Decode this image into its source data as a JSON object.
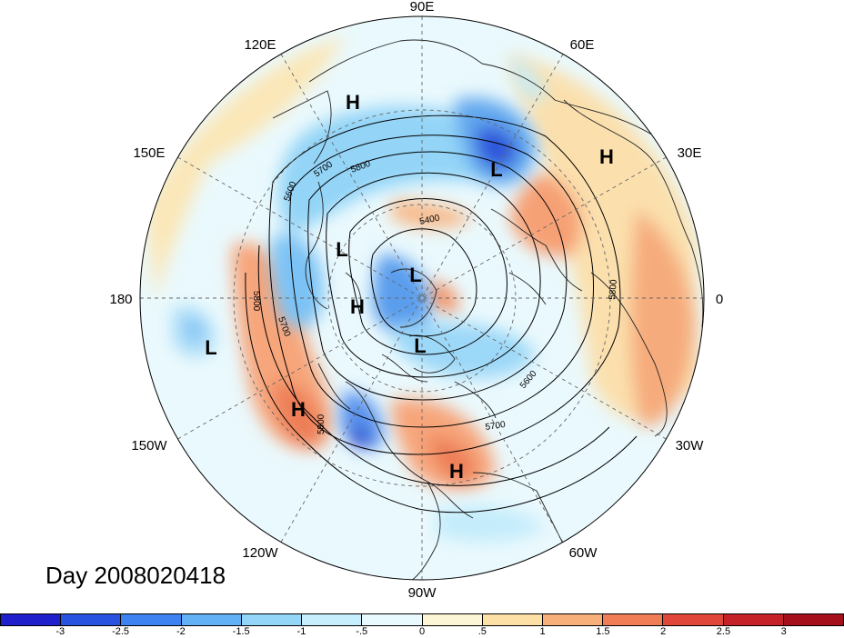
{
  "title": "Day 2008020418",
  "longitude_labels": [
    "90E",
    "60E",
    "30E",
    "0",
    "30W",
    "60W",
    "90W",
    "120W",
    "150W",
    "180",
    "150E",
    "120E"
  ],
  "pressure_centers": [
    {
      "type": "H",
      "region": "eastern-siberia"
    },
    {
      "type": "L",
      "region": "western-siberia"
    },
    {
      "type": "H",
      "region": "north-africa"
    },
    {
      "type": "L",
      "region": "alaska"
    },
    {
      "type": "L",
      "region": "arctic-ocean"
    },
    {
      "type": "H",
      "region": "beaufort-sea"
    },
    {
      "type": "L",
      "region": "canadian-archipelago"
    },
    {
      "type": "L",
      "region": "central-pacific"
    },
    {
      "type": "H",
      "region": "northeast-pacific"
    },
    {
      "type": "H",
      "region": "southeast-united-states"
    }
  ],
  "contour_labels": [
    "5800",
    "5700",
    "5600",
    "5400",
    "5800",
    "5700",
    "5800",
    "5600",
    "5700",
    "5800"
  ],
  "colorbar": {
    "ticks": [
      "-3",
      "-2.5",
      "-2",
      "-1.5",
      "-1",
      "-.5",
      "0",
      ".5",
      "1",
      "1.5",
      "2",
      "2.5",
      "3"
    ],
    "colors": [
      "#1f1fcc",
      "#2a52e0",
      "#3d82f0",
      "#62b0f5",
      "#93d6f8",
      "#c6eefc",
      "#e8fafe",
      "#fdf6d6",
      "#fde0a6",
      "#f8b07a",
      "#f07d55",
      "#e0463a",
      "#c52128",
      "#a50f1c"
    ]
  }
}
